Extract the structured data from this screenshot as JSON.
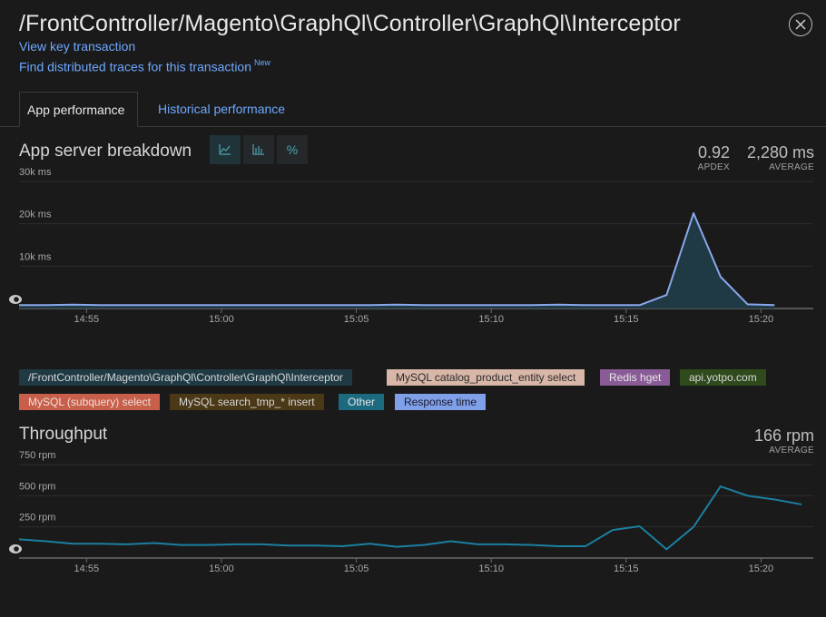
{
  "header": {
    "title": "/FrontController/Magento\\GraphQl\\Controller\\GraphQl\\Interceptor",
    "view_key_link": "View key transaction",
    "traces_link": "Find distributed traces for this transaction",
    "new_badge": "New"
  },
  "tabs": [
    {
      "label": "App performance",
      "active": true
    },
    {
      "label": "Historical performance",
      "active": false
    }
  ],
  "breakdown": {
    "title": "App server breakdown",
    "view_controls": [
      {
        "icon": "area-chart-icon",
        "active": true
      },
      {
        "icon": "bar-chart-icon",
        "active": false
      },
      {
        "label": "%",
        "icon": "percent-icon",
        "active": false
      }
    ],
    "apdex_value": "0.92",
    "apdex_label": "APDEX",
    "average_value": "2,280 ms",
    "average_label": "AVERAGE"
  },
  "legend": [
    {
      "label": "/FrontController/Magento\\GraphQl\\Controller\\GraphQl\\Interceptor",
      "bg": "#1f3a44",
      "fg": "#d8d8d8"
    },
    {
      "label": "MySQL catalog_product_entity select",
      "bg": "#d8b7a8",
      "fg": "#2a2a2a"
    },
    {
      "label": "Redis hget",
      "bg": "#8a5c97",
      "fg": "#e6e6e6"
    },
    {
      "label": "api.yotpo.com",
      "bg": "#2f4a1c",
      "fg": "#d8d8d8"
    },
    {
      "label": "MySQL (subquery) select",
      "bg": "#c85f4a",
      "fg": "#f0e0da"
    },
    {
      "label": "MySQL search_tmp_* insert",
      "bg": "#4a3816",
      "fg": "#d8d8d8"
    },
    {
      "label": "Other",
      "bg": "#1c6a80",
      "fg": "#e6e6e6"
    },
    {
      "label": "Response time",
      "bg": "#7f9fe8",
      "fg": "#1a1a2a"
    }
  ],
  "throughput": {
    "title": "Throughput",
    "average_value": "166 rpm",
    "average_label": "AVERAGE"
  },
  "icons": {
    "close": "close-icon",
    "eye": "eye-icon"
  },
  "chart_data": [
    {
      "type": "area",
      "title": "App server breakdown",
      "ylabel": "",
      "xlabel": "",
      "y_tick_labels": [
        "30k ms",
        "20k ms",
        "10k ms"
      ],
      "y_ticks": [
        30000,
        20000,
        10000
      ],
      "ylim": [
        0,
        30000
      ],
      "x_tick_labels": [
        "14:55",
        "15:00",
        "15:05",
        "15:10",
        "15:15",
        "15:20"
      ],
      "x_ticks_min": [
        2.5,
        7.5,
        12.5,
        17.5,
        22.5,
        27.5
      ],
      "xlim_min": [
        0,
        29
      ],
      "grid": true,
      "x_min": [
        0,
        1,
        2,
        3,
        4,
        5,
        6,
        7,
        8,
        9,
        10,
        11,
        12,
        13,
        14,
        15,
        16,
        17,
        18,
        19,
        20,
        21,
        22,
        23,
        24,
        25,
        26,
        27,
        28
      ],
      "series": [
        {
          "name": "Response time",
          "color": "#8aa7ea",
          "fill": "#1f3a44",
          "values": [
            800,
            800,
            900,
            800,
            800,
            800,
            800,
            800,
            800,
            800,
            800,
            800,
            800,
            800,
            900,
            800,
            800,
            800,
            800,
            800,
            900,
            800,
            800,
            800,
            3200,
            22500,
            7500,
            1000,
            800
          ]
        }
      ]
    },
    {
      "type": "line",
      "title": "Throughput",
      "ylabel": "",
      "xlabel": "",
      "y_tick_labels": [
        "750 rpm",
        "500 rpm",
        "250 rpm"
      ],
      "y_ticks": [
        750,
        500,
        250
      ],
      "ylim": [
        0,
        750
      ],
      "x_tick_labels": [
        "14:55",
        "15:00",
        "15:05",
        "15:10",
        "15:15",
        "15:20"
      ],
      "x_ticks_min": [
        2.5,
        7.5,
        12.5,
        17.5,
        22.5,
        27.5
      ],
      "xlim_min": [
        0,
        29
      ],
      "grid": true,
      "x_min": [
        0,
        1,
        2,
        3,
        4,
        5,
        6,
        7,
        8,
        9,
        10,
        11,
        12,
        13,
        14,
        15,
        16,
        17,
        18,
        19,
        20,
        21,
        22,
        23,
        24,
        25,
        26,
        27,
        28,
        29
      ],
      "series": [
        {
          "name": "Other",
          "color": "#1c7fa0",
          "values": [
            150,
            135,
            115,
            115,
            110,
            120,
            105,
            105,
            110,
            110,
            100,
            100,
            95,
            115,
            90,
            105,
            135,
            110,
            110,
            105,
            95,
            95,
            225,
            255,
            70,
            250,
            575,
            500,
            470,
            430
          ]
        }
      ]
    }
  ]
}
